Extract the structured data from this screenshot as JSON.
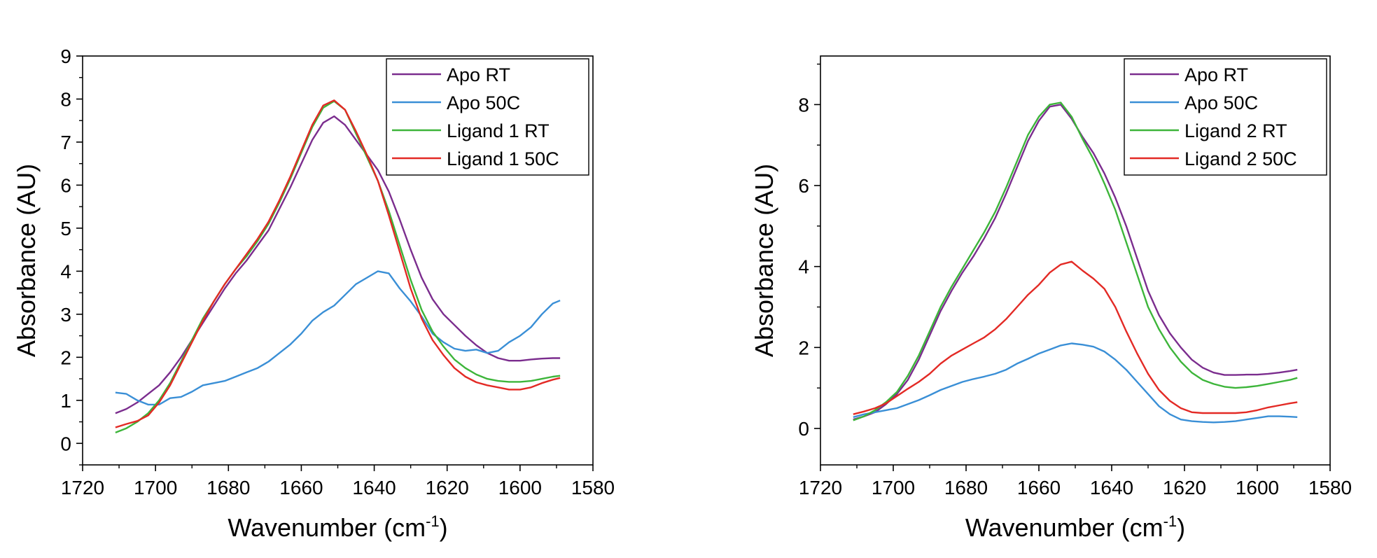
{
  "charts": [
    {
      "chart_data": {
        "type": "line",
        "xlabel_main": "Wavenumber (cm",
        "xlabel_sup": "-1",
        "xlabel_close": ")",
        "ylabel": "Absorbance (AU)",
        "xlim": [
          1720,
          1580
        ],
        "ylim": [
          -0.5,
          9
        ],
        "x_ticks": [
          1720,
          1700,
          1680,
          1660,
          1640,
          1620,
          1600,
          1580
        ],
        "y_ticks": [
          0,
          1,
          2,
          3,
          4,
          5,
          6,
          7,
          8,
          9
        ],
        "y_minor_ticks": [
          -0.5,
          0.5,
          1.5,
          2.5,
          3.5,
          4.5,
          5.5,
          6.5,
          7.5,
          8.5
        ],
        "x_minor_ticks": [
          1710,
          1690,
          1670,
          1650,
          1630,
          1610,
          1590
        ],
        "legend_position": "top-right",
        "grid": false,
        "series": [
          {
            "name": "Apo RT",
            "color": "#7b2d8e",
            "x": [
              1711,
              1708,
              1705,
              1702,
              1699,
              1696,
              1693,
              1690,
              1687,
              1684,
              1681,
              1678,
              1675,
              1672,
              1669,
              1666,
              1663,
              1660,
              1657,
              1654,
              1651,
              1648,
              1645,
              1642,
              1639,
              1636,
              1633,
              1630,
              1627,
              1624,
              1621,
              1618,
              1615,
              1612,
              1609,
              1606,
              1603,
              1600,
              1597,
              1594,
              1591,
              1589
            ],
            "y": [
              0.7,
              0.8,
              0.95,
              1.15,
              1.35,
              1.65,
              2.0,
              2.4,
              2.8,
              3.2,
              3.6,
              3.95,
              4.25,
              4.6,
              4.95,
              5.45,
              5.95,
              6.5,
              7.05,
              7.45,
              7.6,
              7.4,
              7.05,
              6.7,
              6.35,
              5.85,
              5.2,
              4.5,
              3.85,
              3.35,
              3.0,
              2.75,
              2.5,
              2.28,
              2.1,
              1.98,
              1.92,
              1.92,
              1.95,
              1.97,
              1.98,
              1.98
            ]
          },
          {
            "name": "Apo 50C",
            "color": "#3a8fd6",
            "x": [
              1711,
              1708,
              1705,
              1702,
              1699,
              1696,
              1693,
              1690,
              1687,
              1684,
              1681,
              1678,
              1675,
              1672,
              1669,
              1666,
              1663,
              1660,
              1657,
              1654,
              1651,
              1648,
              1645,
              1642,
              1639,
              1636,
              1633,
              1630,
              1627,
              1624,
              1621,
              1618,
              1615,
              1612,
              1609,
              1606,
              1603,
              1600,
              1597,
              1594,
              1591,
              1589
            ],
            "y": [
              1.18,
              1.15,
              1.0,
              0.9,
              0.9,
              1.05,
              1.08,
              1.2,
              1.35,
              1.4,
              1.45,
              1.55,
              1.65,
              1.75,
              1.9,
              2.1,
              2.3,
              2.55,
              2.85,
              3.05,
              3.2,
              3.45,
              3.7,
              3.85,
              4.0,
              3.95,
              3.6,
              3.3,
              2.95,
              2.55,
              2.35,
              2.2,
              2.15,
              2.18,
              2.1,
              2.15,
              2.35,
              2.5,
              2.7,
              3.0,
              3.25,
              3.32
            ]
          },
          {
            "name": "Ligand 1 RT",
            "color": "#3db53a",
            "x": [
              1711,
              1708,
              1705,
              1702,
              1699,
              1696,
              1693,
              1690,
              1687,
              1684,
              1681,
              1678,
              1675,
              1672,
              1669,
              1666,
              1663,
              1660,
              1657,
              1654,
              1651,
              1648,
              1645,
              1642,
              1639,
              1636,
              1633,
              1630,
              1627,
              1624,
              1621,
              1618,
              1615,
              1612,
              1609,
              1606,
              1603,
              1600,
              1597,
              1594,
              1591,
              1589
            ],
            "y": [
              0.25,
              0.35,
              0.5,
              0.7,
              1.0,
              1.4,
              1.9,
              2.4,
              2.9,
              3.3,
              3.7,
              4.05,
              4.35,
              4.7,
              5.1,
              5.6,
              6.15,
              6.75,
              7.35,
              7.8,
              7.95,
              7.75,
              7.2,
              6.65,
              6.1,
              5.4,
              4.6,
              3.8,
              3.1,
              2.6,
              2.25,
              1.95,
              1.75,
              1.6,
              1.5,
              1.45,
              1.43,
              1.43,
              1.45,
              1.5,
              1.55,
              1.57
            ]
          },
          {
            "name": "Ligand 1 50C",
            "color": "#e32a25",
            "x": [
              1711,
              1708,
              1705,
              1702,
              1699,
              1696,
              1693,
              1690,
              1687,
              1684,
              1681,
              1678,
              1675,
              1672,
              1669,
              1666,
              1663,
              1660,
              1657,
              1654,
              1651,
              1648,
              1645,
              1642,
              1639,
              1636,
              1633,
              1630,
              1627,
              1624,
              1621,
              1618,
              1615,
              1612,
              1609,
              1606,
              1603,
              1600,
              1597,
              1594,
              1591,
              1589
            ],
            "y": [
              0.37,
              0.45,
              0.52,
              0.65,
              0.95,
              1.35,
              1.85,
              2.35,
              2.85,
              3.3,
              3.7,
              4.05,
              4.4,
              4.75,
              5.15,
              5.65,
              6.2,
              6.8,
              7.4,
              7.85,
              7.97,
              7.75,
              7.25,
              6.7,
              6.1,
              5.3,
              4.45,
              3.6,
              2.9,
              2.4,
              2.05,
              1.75,
              1.55,
              1.42,
              1.35,
              1.3,
              1.25,
              1.25,
              1.3,
              1.4,
              1.48,
              1.52
            ]
          }
        ]
      }
    },
    {
      "chart_data": {
        "type": "line",
        "xlabel_main": "Wavenumber (cm",
        "xlabel_sup": "-1",
        "xlabel_close": ")",
        "ylabel": "Absorbance (AU)",
        "xlim": [
          1720,
          1580
        ],
        "ylim": [
          -0.9,
          9.2
        ],
        "x_ticks": [
          1720,
          1700,
          1680,
          1660,
          1640,
          1620,
          1600,
          1580
        ],
        "y_ticks": [
          0,
          2,
          4,
          6,
          8
        ],
        "y_minor_ticks": [
          -1,
          1,
          3,
          5,
          7,
          9
        ],
        "x_minor_ticks": [
          1710,
          1690,
          1670,
          1650,
          1630,
          1610,
          1590
        ],
        "legend_position": "top-right",
        "grid": false,
        "series": [
          {
            "name": "Apo RT",
            "color": "#7b2d8e",
            "x": [
              1711,
              1708,
              1705,
              1702,
              1699,
              1696,
              1693,
              1690,
              1687,
              1684,
              1681,
              1678,
              1675,
              1672,
              1669,
              1666,
              1663,
              1660,
              1657,
              1654,
              1651,
              1648,
              1645,
              1642,
              1639,
              1636,
              1633,
              1630,
              1627,
              1624,
              1621,
              1618,
              1615,
              1612,
              1609,
              1606,
              1603,
              1600,
              1597,
              1594,
              1591,
              1589
            ],
            "y": [
              0.22,
              0.3,
              0.4,
              0.6,
              0.85,
              1.2,
              1.7,
              2.3,
              2.9,
              3.4,
              3.85,
              4.25,
              4.7,
              5.2,
              5.8,
              6.45,
              7.1,
              7.6,
              7.95,
              8.0,
              7.65,
              7.2,
              6.8,
              6.3,
              5.7,
              5.0,
              4.2,
              3.4,
              2.8,
              2.35,
              2.0,
              1.7,
              1.5,
              1.38,
              1.32,
              1.32,
              1.33,
              1.33,
              1.35,
              1.38,
              1.42,
              1.45
            ]
          },
          {
            "name": "Apo 50C",
            "color": "#3a8fd6",
            "x": [
              1711,
              1708,
              1705,
              1702,
              1699,
              1696,
              1693,
              1690,
              1687,
              1684,
              1681,
              1678,
              1675,
              1672,
              1669,
              1666,
              1663,
              1660,
              1657,
              1654,
              1651,
              1648,
              1645,
              1642,
              1639,
              1636,
              1633,
              1630,
              1627,
              1624,
              1621,
              1618,
              1615,
              1612,
              1609,
              1606,
              1603,
              1600,
              1597,
              1594,
              1591,
              1589
            ],
            "y": [
              0.28,
              0.35,
              0.4,
              0.45,
              0.5,
              0.6,
              0.7,
              0.82,
              0.95,
              1.05,
              1.15,
              1.22,
              1.28,
              1.35,
              1.45,
              1.6,
              1.72,
              1.85,
              1.95,
              2.05,
              2.1,
              2.07,
              2.02,
              1.9,
              1.7,
              1.45,
              1.15,
              0.85,
              0.55,
              0.35,
              0.22,
              0.18,
              0.16,
              0.15,
              0.16,
              0.18,
              0.22,
              0.26,
              0.3,
              0.3,
              0.29,
              0.28
            ]
          },
          {
            "name": "Ligand 2 RT",
            "color": "#3db53a",
            "x": [
              1711,
              1708,
              1705,
              1702,
              1699,
              1696,
              1693,
              1690,
              1687,
              1684,
              1681,
              1678,
              1675,
              1672,
              1669,
              1666,
              1663,
              1660,
              1657,
              1654,
              1651,
              1648,
              1645,
              1642,
              1639,
              1636,
              1633,
              1630,
              1627,
              1624,
              1621,
              1618,
              1615,
              1612,
              1609,
              1606,
              1603,
              1600,
              1597,
              1594,
              1591,
              1589
            ],
            "y": [
              0.2,
              0.3,
              0.45,
              0.65,
              0.9,
              1.3,
              1.8,
              2.4,
              3.0,
              3.5,
              3.95,
              4.4,
              4.85,
              5.35,
              5.95,
              6.6,
              7.25,
              7.7,
              8.0,
              8.05,
              7.7,
              7.15,
              6.65,
              6.05,
              5.4,
              4.6,
              3.8,
              3.0,
              2.45,
              2.0,
              1.65,
              1.38,
              1.2,
              1.1,
              1.03,
              1.0,
              1.02,
              1.05,
              1.1,
              1.15,
              1.2,
              1.25
            ]
          },
          {
            "name": "Ligand 2 50C",
            "color": "#e32a25",
            "x": [
              1711,
              1708,
              1705,
              1702,
              1699,
              1696,
              1693,
              1690,
              1687,
              1684,
              1681,
              1678,
              1675,
              1672,
              1669,
              1666,
              1663,
              1660,
              1657,
              1654,
              1651,
              1648,
              1645,
              1642,
              1639,
              1636,
              1633,
              1630,
              1627,
              1624,
              1621,
              1618,
              1615,
              1612,
              1609,
              1606,
              1603,
              1600,
              1597,
              1594,
              1591,
              1589
            ],
            "y": [
              0.35,
              0.42,
              0.5,
              0.62,
              0.8,
              0.98,
              1.15,
              1.35,
              1.6,
              1.8,
              1.95,
              2.1,
              2.25,
              2.45,
              2.7,
              3.0,
              3.3,
              3.55,
              3.85,
              4.05,
              4.12,
              3.9,
              3.7,
              3.45,
              3.0,
              2.4,
              1.85,
              1.35,
              0.95,
              0.68,
              0.5,
              0.4,
              0.38,
              0.38,
              0.38,
              0.38,
              0.4,
              0.45,
              0.52,
              0.57,
              0.62,
              0.65
            ]
          }
        ]
      }
    }
  ]
}
